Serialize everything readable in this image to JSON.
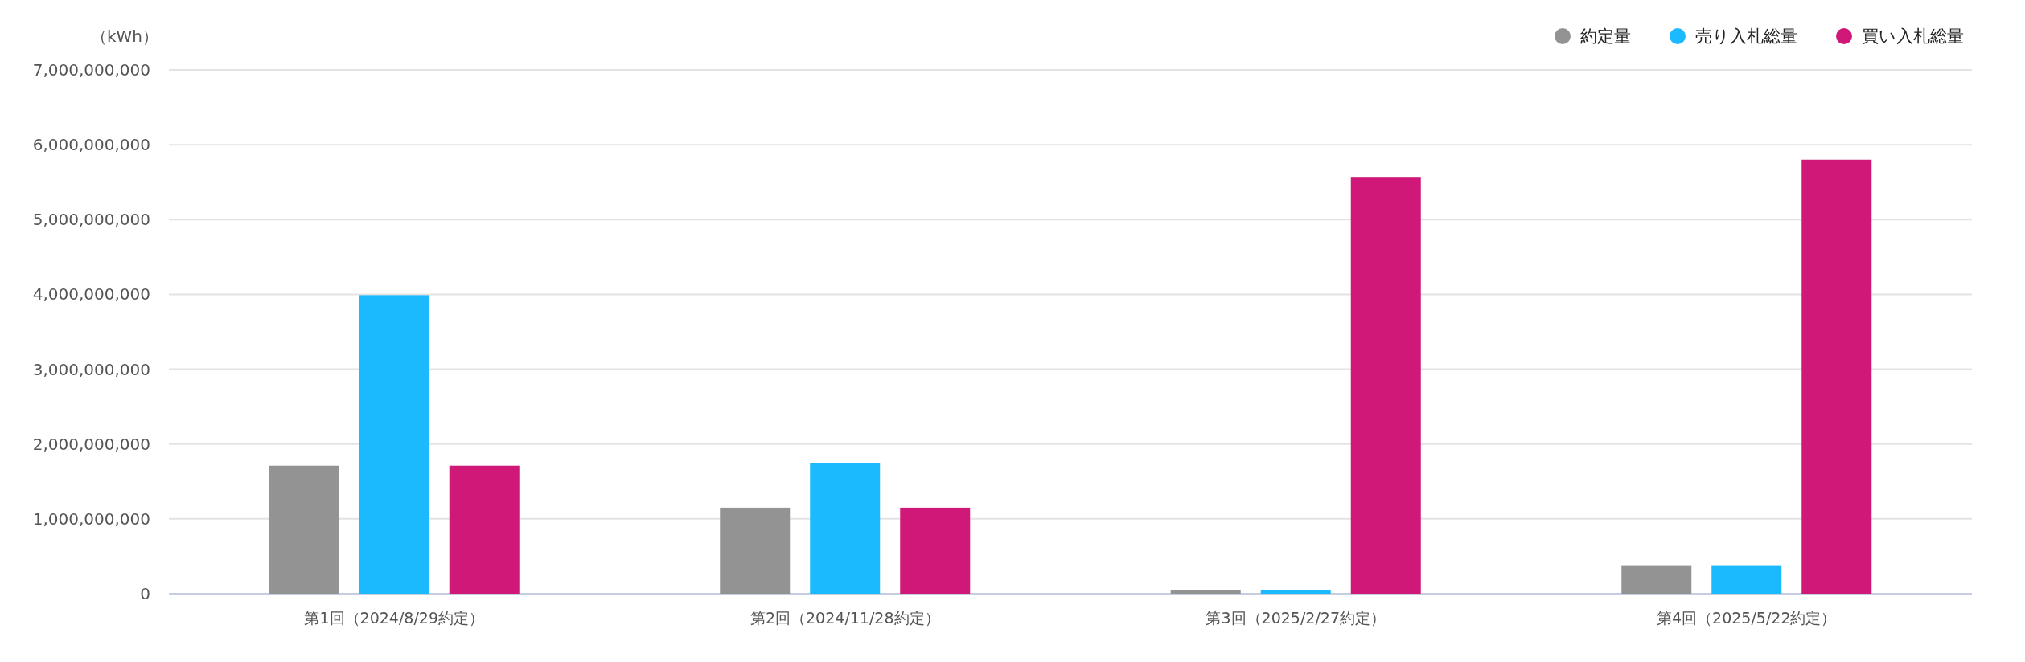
{
  "chart_data": {
    "type": "bar",
    "ylabel": "（kWh）",
    "categories": [
      "第1回（2024/8/29約定）",
      "第2回（2024/11/28約定）",
      "第3回（2025/2/27約定）",
      "第4回（2025/5/22約定）"
    ],
    "series": [
      {
        "name": "約定量",
        "color": "#939393",
        "values": [
          1710000000,
          1150000000,
          50000000,
          380000000
        ]
      },
      {
        "name": "売り入札総量",
        "color": "#1bb9fe",
        "values": [
          3990000000,
          1750000000,
          50000000,
          380000000
        ]
      },
      {
        "name": "買い入札総量",
        "color": "#d01878",
        "values": [
          1710000000,
          1150000000,
          5570000000,
          5800000000
        ]
      }
    ],
    "ylim": [
      0,
      7000000000
    ],
    "yticks": [
      {
        "value": 0,
        "label": "0"
      },
      {
        "value": 1000000000,
        "label": "1,000,000,000"
      },
      {
        "value": 2000000000,
        "label": "2,000,000,000"
      },
      {
        "value": 3000000000,
        "label": "3,000,000,000"
      },
      {
        "value": 4000000000,
        "label": "4,000,000,000"
      },
      {
        "value": 5000000000,
        "label": "5,000,000,000"
      },
      {
        "value": 6000000000,
        "label": "6,000,000,000"
      },
      {
        "value": 7000000000,
        "label": "7,000,000,000"
      }
    ],
    "grid": "y",
    "legend": "top right"
  }
}
